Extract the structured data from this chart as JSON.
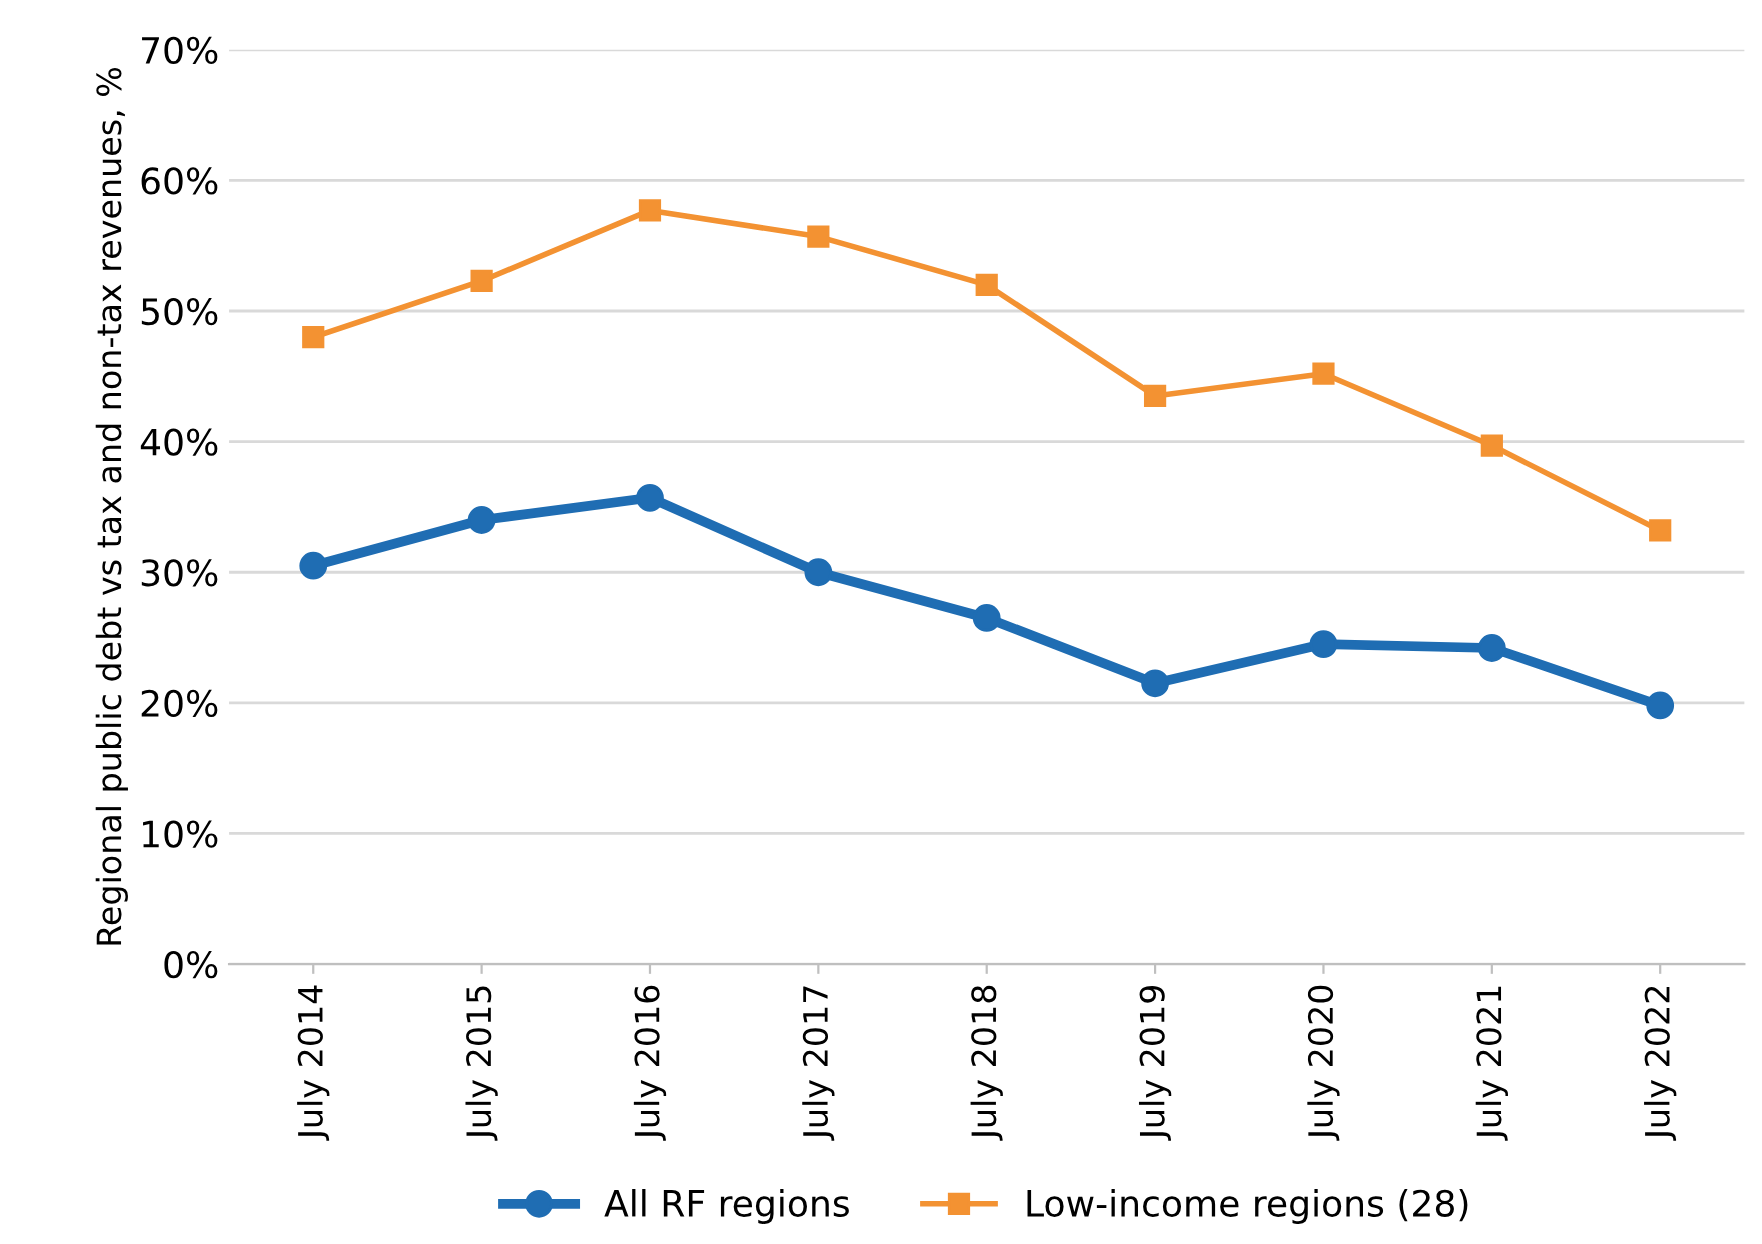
{
  "chart_data": {
    "type": "line",
    "ylabel": "Regional public debt vs tax and non-tax revenues, %",
    "categories": [
      "July 2014",
      "July 2015",
      "July 2016",
      "July 2017",
      "July 2018",
      "July 2019",
      "July 2020",
      "July 2021",
      "July 2022"
    ],
    "series": [
      {
        "name": "All RF regions",
        "color": "#1f6db3",
        "marker": "circle",
        "values": [
          30.5,
          34.0,
          35.7,
          30.0,
          26.5,
          21.5,
          24.5,
          24.2,
          19.8
        ]
      },
      {
        "name": "Low-income regions (28)",
        "color": "#f39232",
        "marker": "square",
        "values": [
          48.0,
          52.3,
          57.7,
          55.7,
          52.0,
          43.5,
          45.2,
          39.7,
          33.2
        ]
      }
    ],
    "ylim": [
      0,
      70
    ],
    "yticks": [
      {
        "value": 0,
        "label": "0%"
      },
      {
        "value": 10,
        "label": "10%"
      },
      {
        "value": 20,
        "label": "20%"
      },
      {
        "value": 30,
        "label": "30%"
      },
      {
        "value": 40,
        "label": "40%"
      },
      {
        "value": 50,
        "label": "50%"
      },
      {
        "value": 60,
        "label": "60%"
      },
      {
        "value": 70,
        "label": "70%"
      }
    ],
    "grid": "y",
    "legend": "bottom"
  }
}
